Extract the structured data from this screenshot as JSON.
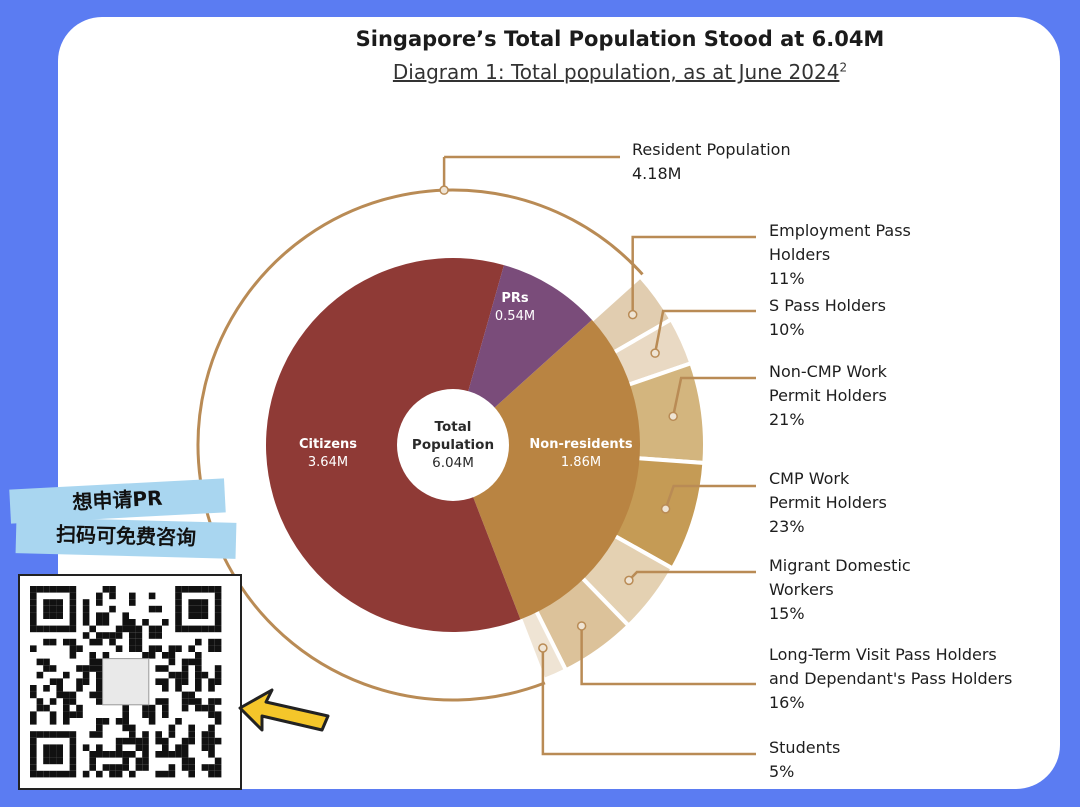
{
  "chart_data": {
    "type": "pie",
    "title": "Singapore’s Total Population Stood at 6.04M",
    "subtitle": "Diagram 1: Total population, as at June 2024",
    "subtitle_footnote": "2",
    "center": {
      "label_line1": "Total",
      "label_line2": "Population",
      "value": "6.04M",
      "total": 6.04
    },
    "inner_ring": [
      {
        "name": "Citizens",
        "value": 3.64,
        "value_label": "3.64M",
        "color": "#8f3a36"
      },
      {
        "name": "PRs",
        "value": 0.54,
        "value_label": "0.54M",
        "color": "#7a4c7a"
      },
      {
        "name": "Non-residents",
        "value": 1.86,
        "value_label": "1.86M",
        "color": "#b98442"
      }
    ],
    "resident_arc": {
      "name": "Resident Population",
      "value": 4.18,
      "value_label": "4.18M",
      "color": "#b98b55"
    },
    "non_resident_breakdown": [
      {
        "name_lines": [
          "Employment Pass",
          "Holders"
        ],
        "percent": 11,
        "value_label": "11%",
        "color": "#e1cdb0"
      },
      {
        "name_lines": [
          "S Pass Holders"
        ],
        "percent": 10,
        "value_label": "10%",
        "color": "#e9d9c3"
      },
      {
        "name_lines": [
          "Non-CMP Work",
          "Permit Holders"
        ],
        "percent": 21,
        "value_label": "21%",
        "color": "#d3b57e"
      },
      {
        "name_lines": [
          "CMP Work",
          "Permit Holders"
        ],
        "percent": 23,
        "value_label": "23%",
        "color": "#c59b55"
      },
      {
        "name_lines": [
          "Migrant Domestic",
          "Workers"
        ],
        "percent": 15,
        "value_label": "15%",
        "color": "#e4d1b2"
      },
      {
        "name_lines": [
          "Long-Term Visit Pass Holders",
          "and Dependant's Pass Holders"
        ],
        "percent": 16,
        "value_label": "16%",
        "color": "#dcc29a"
      },
      {
        "name_lines": [
          "Students"
        ],
        "percent": 5,
        "value_label": "5%",
        "color": "#efe4d4"
      }
    ]
  },
  "promo": {
    "line1": "想申请PR",
    "line2": "扫码可免费咨询"
  },
  "colors": {
    "background": "#5b7cf2",
    "card": "#ffffff",
    "leader_line": "#b98b55",
    "tag": "#a9d6f0",
    "arrow": "#f4c62a"
  }
}
